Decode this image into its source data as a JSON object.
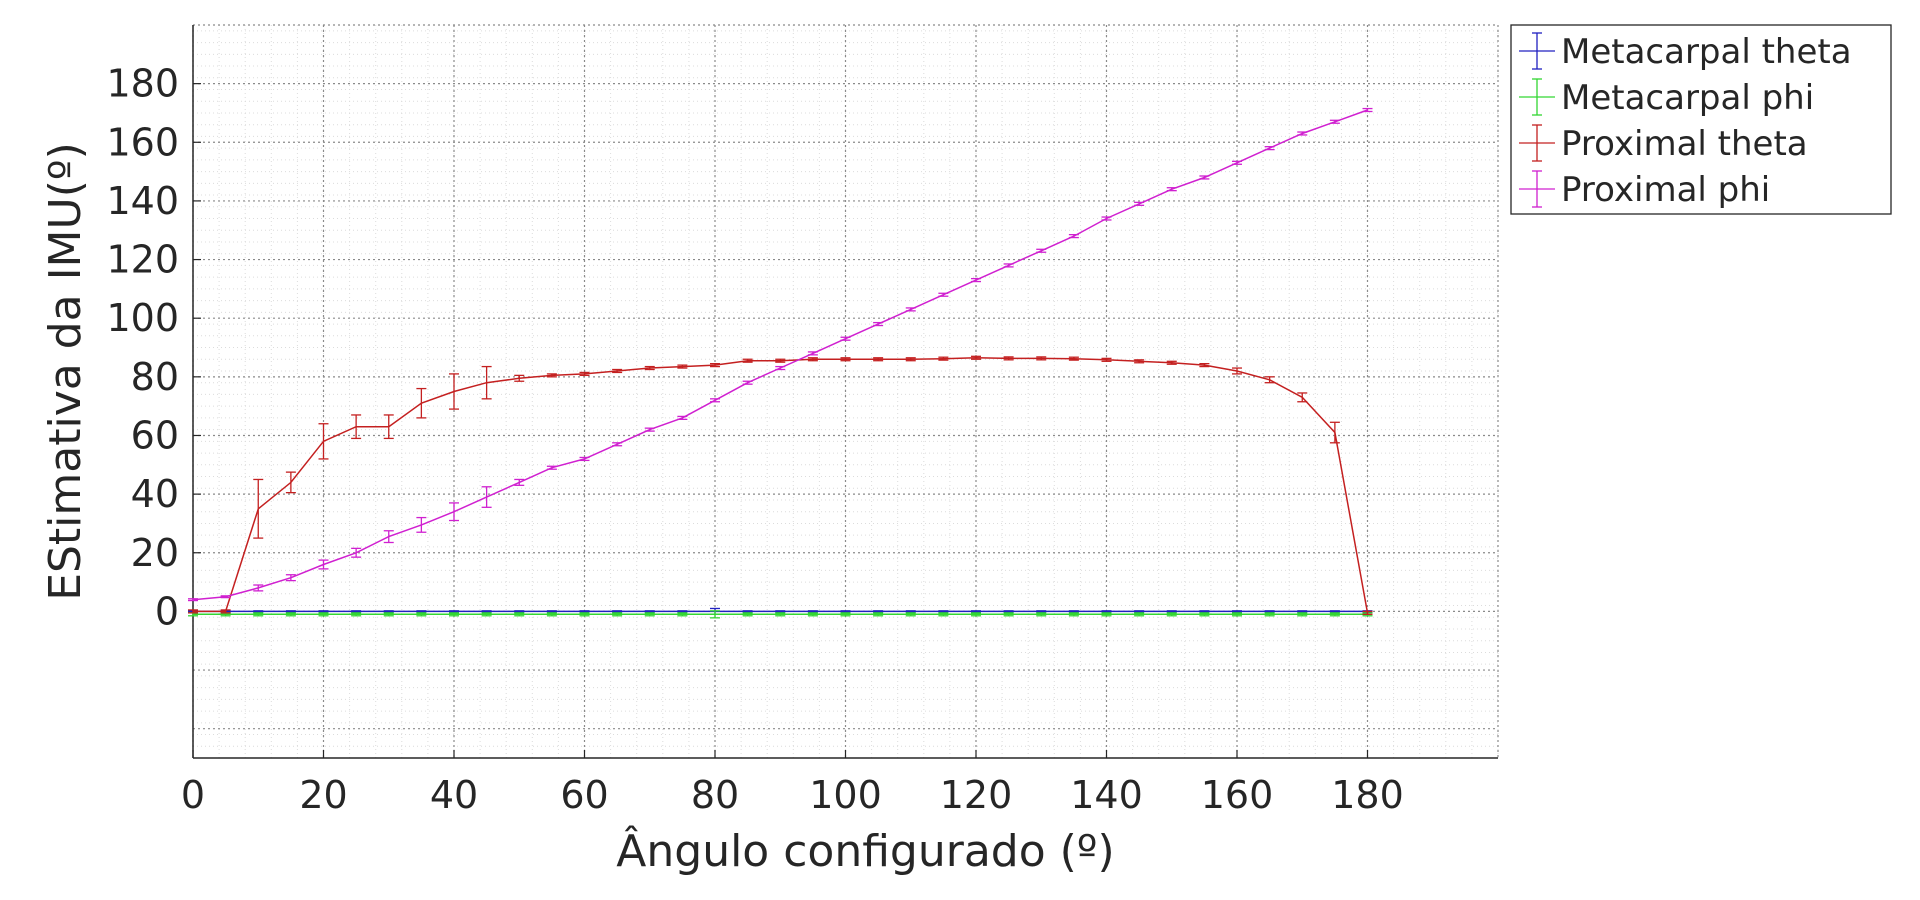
{
  "chart_data": {
    "type": "line",
    "xlabel": "Ângulo configurado (º)",
    "ylabel": "EStimativa da IMU(º)",
    "xlim": [
      0,
      200
    ],
    "ylim": [
      -50,
      200
    ],
    "xticks": [
      0,
      20,
      40,
      60,
      80,
      100,
      120,
      140,
      160,
      180
    ],
    "yticks": [
      0,
      20,
      40,
      60,
      80,
      100,
      120,
      140,
      160,
      180
    ],
    "grid": "major dotted, minor dotted",
    "legend_position": "outside top-right",
    "x": [
      0,
      5,
      10,
      15,
      20,
      25,
      30,
      35,
      40,
      45,
      50,
      55,
      60,
      65,
      70,
      75,
      80,
      85,
      90,
      95,
      100,
      105,
      110,
      115,
      120,
      125,
      130,
      135,
      140,
      145,
      150,
      155,
      160,
      165,
      170,
      175,
      180
    ],
    "series": [
      {
        "name": "Metacarpal theta",
        "color": "#2020c0",
        "values": [
          0,
          0,
          0,
          0,
          0,
          0,
          0,
          0,
          0,
          0,
          0,
          0,
          0,
          0,
          0,
          0,
          0,
          0,
          0,
          0,
          0,
          0,
          0,
          0,
          0,
          0,
          0,
          0,
          0,
          0,
          0,
          0,
          0,
          0,
          0,
          0,
          0
        ],
        "errors": [
          0.2,
          0.2,
          0.2,
          0.2,
          0.2,
          0.2,
          0.2,
          0.2,
          0.2,
          0.2,
          0.2,
          0.2,
          0.2,
          0.2,
          0.2,
          0.2,
          1,
          0.2,
          0.2,
          0.2,
          0.2,
          0.2,
          0.2,
          0.2,
          0.2,
          0.2,
          0.2,
          0.2,
          0.2,
          0.2,
          0.2,
          0.2,
          0.2,
          0.2,
          0.2,
          0.2,
          0.2
        ]
      },
      {
        "name": "Metacarpal phi",
        "color": "#33d633",
        "values": [
          -1,
          -1,
          -1,
          -1,
          -1,
          -1,
          -1,
          -1,
          -1,
          -1,
          -1,
          -1,
          -1,
          -1,
          -1,
          -1,
          -1,
          -1,
          -1,
          -1,
          -1,
          -1,
          -1,
          -1,
          -1,
          -1,
          -1,
          -1,
          -1,
          -1,
          -1,
          -1,
          -1,
          -1,
          -1,
          -1,
          -1
        ],
        "errors": [
          0.5,
          0.5,
          0.5,
          0.5,
          0.5,
          0.5,
          0.5,
          0.5,
          0.5,
          0.5,
          0.5,
          0.5,
          0.5,
          0.5,
          0.5,
          0.5,
          1.2,
          0.5,
          0.5,
          0.5,
          0.5,
          0.5,
          0.5,
          0.5,
          0.5,
          0.5,
          0.5,
          0.5,
          0.5,
          0.5,
          0.5,
          0.5,
          0.5,
          0.5,
          0.5,
          0.5,
          0.5
        ]
      },
      {
        "name": "Proximal theta",
        "color": "#c42020",
        "values": [
          0,
          0,
          35,
          44,
          58,
          63,
          63,
          71,
          75,
          78,
          79.5,
          80.5,
          81,
          82,
          83,
          83.5,
          84,
          85.5,
          85.5,
          86,
          86,
          86,
          86,
          86.2,
          86.5,
          86.3,
          86.3,
          86.2,
          85.8,
          85.3,
          84.8,
          84,
          82,
          79,
          73,
          61,
          -0.5
        ],
        "errors": [
          0.5,
          0.5,
          10,
          3.5,
          6,
          4,
          4,
          5,
          6,
          5.5,
          1,
          0.5,
          0.5,
          0.5,
          0.5,
          0.5,
          0.5,
          0.5,
          0.5,
          0.5,
          0.5,
          0.5,
          0.5,
          0.5,
          0.5,
          0.5,
          0.5,
          0.5,
          0.5,
          0.5,
          0.5,
          0.5,
          1,
          1,
          1.5,
          3.5,
          0.5
        ]
      },
      {
        "name": "Proximal phi",
        "color": "#d020d0",
        "values": [
          4,
          5,
          8,
          11.5,
          16,
          20,
          25.5,
          29.5,
          34,
          39,
          44,
          49,
          52,
          57,
          62,
          66,
          72,
          78,
          83,
          88,
          93,
          98,
          103,
          108,
          113,
          118,
          123,
          128,
          134,
          139,
          144,
          148,
          153,
          158,
          163,
          167,
          171
        ],
        "errors": [
          0.3,
          0.3,
          1,
          1,
          1.5,
          1.5,
          2,
          2.5,
          3,
          3.5,
          1,
          0.5,
          0.5,
          0.5,
          0.5,
          0.5,
          0.5,
          0.5,
          0.5,
          0.5,
          0.5,
          0.5,
          0.5,
          0.5,
          0.5,
          0.5,
          0.5,
          0.5,
          0.5,
          0.5,
          0.5,
          0.5,
          0.5,
          0.5,
          0.5,
          0.5,
          0.5
        ]
      }
    ]
  }
}
